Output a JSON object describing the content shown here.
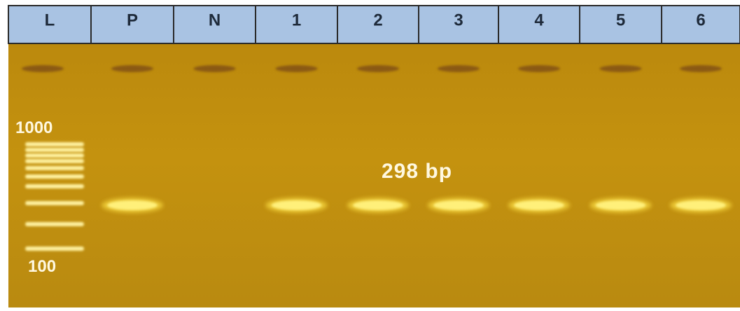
{
  "header": {
    "lanes": [
      "L",
      "P",
      "N",
      "1",
      "2",
      "3",
      "4",
      "5",
      "6"
    ]
  },
  "ladder": {
    "top_label": "1000",
    "bottom_label": "100"
  },
  "annotation": "298 bp"
}
